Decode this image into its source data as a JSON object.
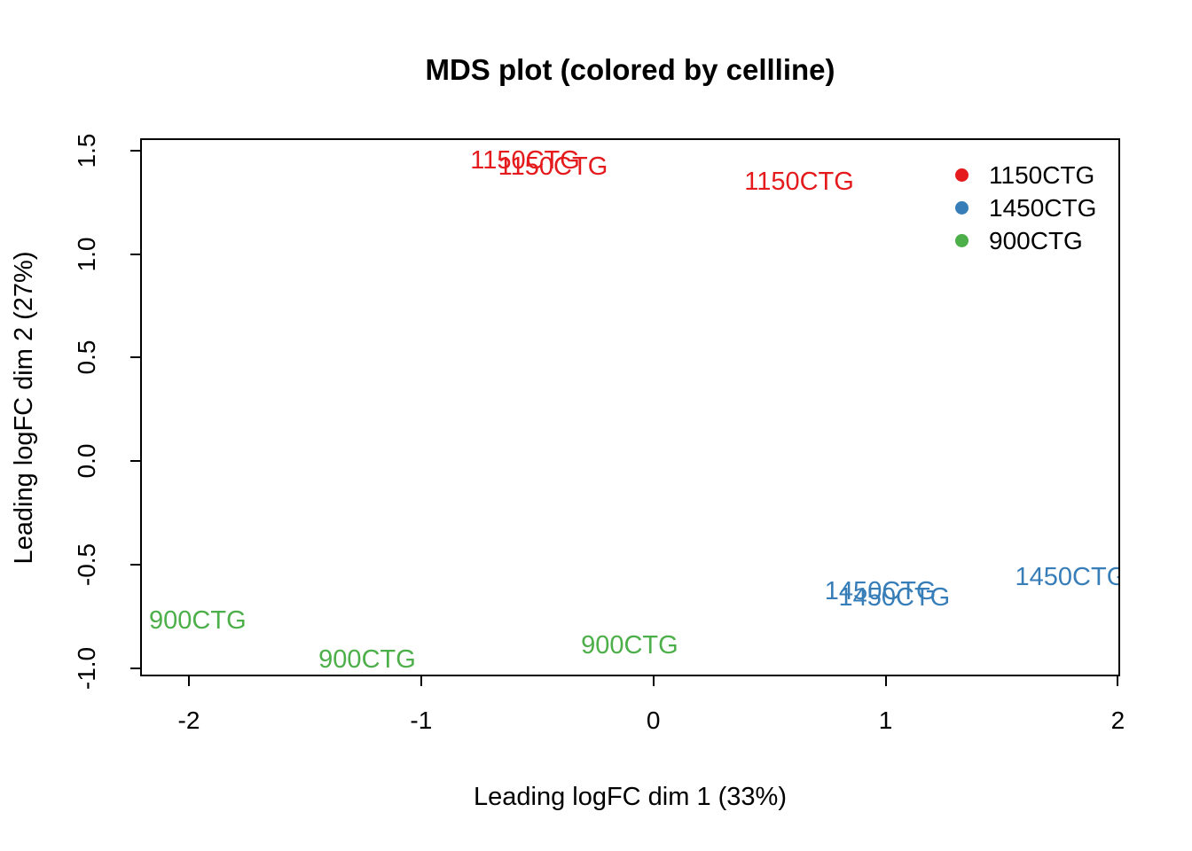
{
  "figure": {
    "background": "#ffffff",
    "text_color": "#000000"
  },
  "chart_data": {
    "type": "scatter",
    "title": "MDS plot (colored by cellline)",
    "xlabel": "Leading logFC dim 1 (33%)",
    "ylabel": "Leading logFC dim 2 (27%)",
    "xlim": [
      -2.21,
      2.01
    ],
    "ylim": [
      -1.04,
      1.56
    ],
    "xticks": [
      -2,
      -1,
      0,
      1,
      2
    ],
    "xtick_labels": [
      "-2",
      "-1",
      "0",
      "1",
      "2"
    ],
    "yticks": [
      -1.0,
      -0.5,
      0.0,
      0.5,
      1.0,
      1.5
    ],
    "ytick_labels": [
      "-1.0",
      "-0.5",
      "0.0",
      "0.5",
      "1.0",
      "1.5"
    ],
    "grid": false,
    "point_marker": "text-label",
    "series": [
      {
        "name": "1150CTG",
        "color": "#e41a1c",
        "points": [
          [
            -0.56,
            1.46
          ],
          [
            -0.44,
            1.43
          ],
          [
            0.62,
            1.36
          ]
        ]
      },
      {
        "name": "1450CTG",
        "color": "#377eb8",
        "points": [
          [
            0.97,
            -0.62
          ],
          [
            1.03,
            -0.65
          ],
          [
            1.79,
            -0.55
          ]
        ]
      },
      {
        "name": "900CTG",
        "color": "#4daf4a",
        "points": [
          [
            -1.97,
            -0.76
          ],
          [
            -1.24,
            -0.95
          ],
          [
            -0.11,
            -0.88
          ]
        ]
      }
    ],
    "legend": {
      "position": "top-right",
      "box": false,
      "entries": [
        {
          "label": "1150CTG",
          "color": "#e41a1c"
        },
        {
          "label": "1450CTG",
          "color": "#377eb8"
        },
        {
          "label": "900CTG",
          "color": "#4daf4a"
        }
      ]
    }
  }
}
